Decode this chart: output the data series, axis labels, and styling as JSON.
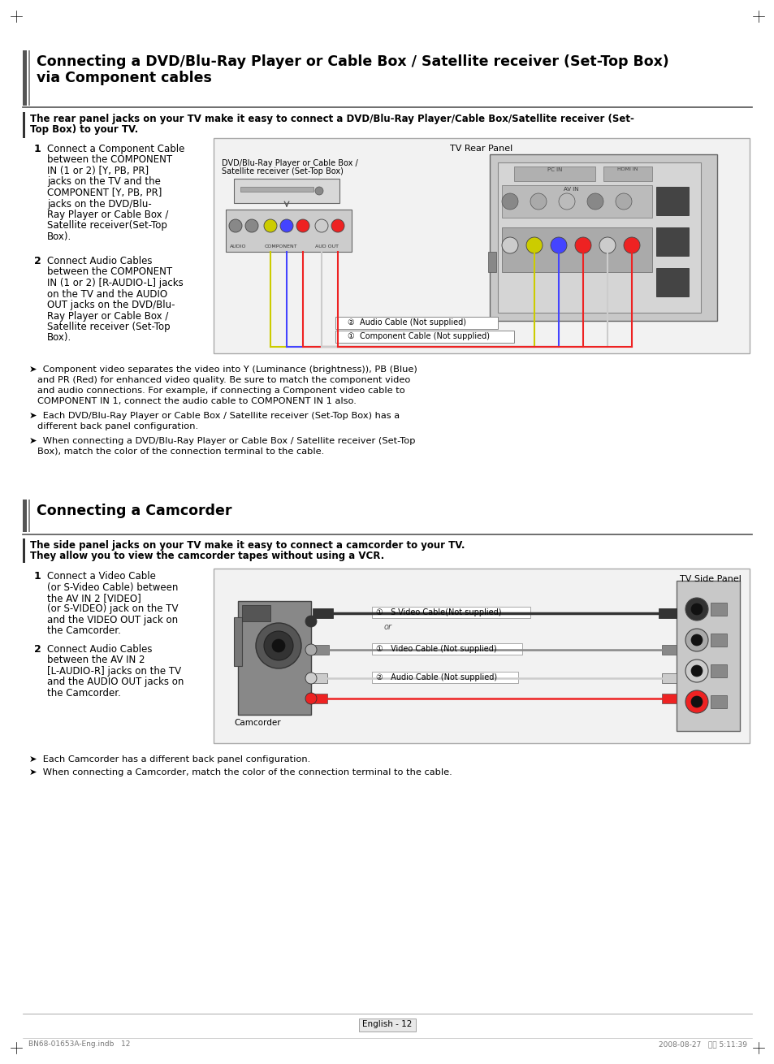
{
  "page_bg": "#ffffff",
  "s1_title_line1": "Connecting a DVD/Blu-Ray Player or Cable Box / Satellite receiver (Set-Top Box)",
  "s1_title_line2": "via Component cables",
  "s1_subtitle_line1": "The rear panel jacks on your TV make it easy to connect a DVD/Blu-Ray Player/Cable Box/Satellite receiver (Set-",
  "s1_subtitle_line2": "Top Box) to your TV.",
  "s1_step1_label": "1",
  "s1_step1_lines": [
    "Connect a Component Cable",
    "between the COMPONENT",
    "IN (1 or 2) [Y, PB, PR]",
    "jacks on the TV and the",
    "COMPONENT [Y, PB, PR]",
    "jacks on the DVD/Blu-",
    "Ray Player or Cable Box /",
    "Satellite receiver(Set-Top",
    "Box)."
  ],
  "s1_step2_label": "2",
  "s1_step2_lines": [
    "Connect Audio Cables",
    "between the COMPONENT",
    "IN (1 or 2) [R-AUDIO-L] jacks",
    "on the TV and the AUDIO",
    "OUT jacks on the DVD/Blu-",
    "Ray Player or Cable Box /",
    "Satellite receiver (Set-Top",
    "Box)."
  ],
  "s1_diag_label_top": "TV Rear Panel",
  "s1_diag_label_device": "DVD/Blu-Ray Player or Cable Box /\nSatellite receiver (Set-Top Box)",
  "s1_cable1_label": "1  Component Cable (Not supplied)",
  "s1_cable2_label": "2  Audio Cable (Not supplied)",
  "s1_bullet1": "➤  Component video separates the video into Y (Luminance (brightness)), PB (Blue) and PR (Red) for enhanced video quality. Be sure to match the component video and audio connections. For example, if connecting a Component video cable to COMPONENT IN 1, connect the audio cable to COMPONENT IN 1 also.",
  "s1_bullet2": "➤  Each DVD/Blu-Ray Player or Cable Box / Satellite receiver (Set-Top Box) has a different back panel configuration.",
  "s1_bullet3": "➤  When connecting a DVD/Blu-Ray Player or Cable Box / Satellite receiver (Set-Top Box), match the color of the connection terminal to the cable.",
  "s2_title": "Connecting a Camcorder",
  "s2_subtitle_line1": "The side panel jacks on your TV make it easy to connect a camcorder to your TV.",
  "s2_subtitle_line2": "They allow you to view the camcorder tapes without using a VCR.",
  "s2_step1_label": "1",
  "s2_step1_lines": [
    "Connect a Video Cable",
    "(or S-Video Cable) between",
    "the AV IN 2 [VIDEO]",
    "(or S-VIDEO) jack on the TV",
    "and the VIDEO OUT jack on",
    "the Camcorder."
  ],
  "s2_step2_label": "2",
  "s2_step2_lines": [
    "Connect Audio Cables",
    "between the AV IN 2",
    "[L-AUDIO-R] jacks on the TV",
    "and the AUDIO OUT jacks on",
    "the Camcorder."
  ],
  "s2_diag_label_top": "TV Side Panel",
  "s2_diag_label_device": "Camcorder",
  "s2_cable1_label": "1  S-Video Cable(Not supplied)",
  "s2_cable2_label": "1  Video Cable (Not supplied)",
  "s2_cable3_label": "2  Audio Cable (Not supplied)",
  "s2_bullet1": "➤  Each Camcorder has a different back panel configuration.",
  "s2_bullet2": "➤  When connecting a Camcorder, match the color of the connection terminal to the cable.",
  "footer_left": "BN68-01653A-Eng.indb   12",
  "footer_right": "2008-08-27   오후 5:11:39",
  "page_number": "English - 12",
  "accent_color": "#333333",
  "title_color": "#000000",
  "body_color": "#000000",
  "diagram_bg": "#e8e8e8",
  "diagram_border": "#aaaaaa"
}
